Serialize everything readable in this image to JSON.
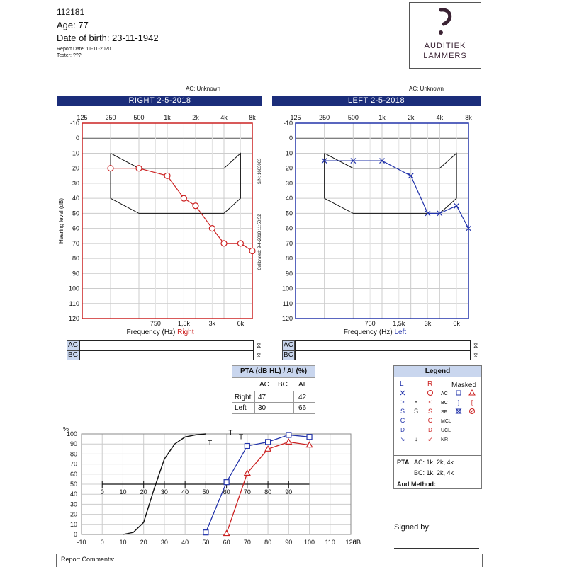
{
  "header": {
    "patient_id": "112181",
    "age": "Age: 77",
    "dob": "Date of birth: 23-11-1942",
    "report_date": "Report Date: 11-11-2020",
    "tester": "Tester: ???"
  },
  "logo": {
    "line1": "AUDITIEK",
    "line2": "LAMMERS"
  },
  "right_panel": {
    "ac_status": "AC: Unknown",
    "title": "RIGHT  2-5-2018",
    "top_freqs": [
      "125",
      "250",
      "500",
      "1k",
      "2k",
      "4k",
      "8k"
    ],
    "bottom_freqs": [
      "750",
      "1,5k",
      "3k",
      "6k"
    ],
    "xlabel": "Frequency (Hz)",
    "side": "Right",
    "ylabel": "Hearing level (dB)",
    "yticks": [
      "-10",
      "0",
      "10",
      "20",
      "30",
      "40",
      "50",
      "60",
      "70",
      "80",
      "90",
      "100",
      "110",
      "120"
    ],
    "sn": "S/N: 1603003",
    "calibrated": "Calibrated: 9-4-2018 11:50:52",
    "color": "#cc2222",
    "ac_points": [
      [
        250,
        20
      ],
      [
        500,
        20
      ],
      [
        1000,
        25
      ],
      [
        1500,
        40
      ],
      [
        2000,
        45
      ],
      [
        3000,
        60
      ],
      [
        4000,
        70
      ],
      [
        6000,
        70
      ],
      [
        8000,
        75
      ]
    ]
  },
  "left_panel": {
    "ac_status": "AC: Unknown",
    "title": "LEFT  2-5-2018",
    "top_freqs": [
      "125",
      "250",
      "500",
      "1k",
      "2k",
      "4k",
      "8k"
    ],
    "bottom_freqs": [
      "750",
      "1,5k",
      "3k",
      "6k"
    ],
    "xlabel": "Frequency (Hz)",
    "side": "Left",
    "yticks": [
      "-10",
      "0",
      "10",
      "20",
      "30",
      "40",
      "50",
      "60",
      "70",
      "80",
      "90",
      "100",
      "110",
      "120"
    ],
    "color": "#2233aa",
    "ac_points": [
      [
        250,
        15
      ],
      [
        500,
        15
      ],
      [
        1000,
        15
      ],
      [
        2000,
        25
      ],
      [
        3000,
        50
      ],
      [
        4000,
        50
      ],
      [
        6000,
        45
      ],
      [
        8000,
        60
      ]
    ]
  },
  "banana": [
    [
      250,
      10
    ],
    [
      250,
      40
    ],
    [
      500,
      50
    ],
    [
      4000,
      50
    ],
    [
      6000,
      40
    ],
    [
      6000,
      10
    ],
    [
      4000,
      20
    ],
    [
      500,
      20
    ],
    [
      250,
      10
    ]
  ],
  "acbc": {
    "ac": "AC",
    "bc": "BC"
  },
  "pta": {
    "title": "PTA (dB HL) / AI (%)",
    "cols": [
      "AC",
      "BC",
      "AI"
    ],
    "rows": [
      {
        "label": "Right",
        "ac": "47",
        "bc": "",
        "ai": "42"
      },
      {
        "label": "Left",
        "ac": "30",
        "bc": "",
        "ai": "66"
      }
    ]
  },
  "legend": {
    "title": "Legend",
    "L": "L",
    "R": "R",
    "masked": "Masked",
    "row_labels": [
      "AC",
      "BC",
      "SF",
      "MCL",
      "UCL",
      "NR"
    ],
    "pta_label": "PTA",
    "pta_ac": "AC: 1k, 2k, 4k",
    "pta_bc": "BC: 1k, 2k, 4k",
    "aud_method": "Aud Method:"
  },
  "signed_by": "Signed by:",
  "report_comments": "Report Comments:",
  "chart_data": {
    "type": "line",
    "ylabel": "%",
    "xunit": "dB",
    "x_ticks": [
      "-10",
      "0",
      "10",
      "20",
      "30",
      "40",
      "50",
      "60",
      "70",
      "80",
      "90",
      "100",
      "110",
      "120"
    ],
    "inner_x_ticks": [
      "0",
      "10",
      "20",
      "30",
      "40",
      "50",
      "60",
      "70",
      "80",
      "90"
    ],
    "y_ticks": [
      "0",
      "10",
      "20",
      "30",
      "40",
      "50",
      "60",
      "70",
      "80",
      "90",
      "100"
    ],
    "xlim": [
      -10,
      120
    ],
    "ylim": [
      0,
      100
    ],
    "series": [
      {
        "color": "#111111",
        "marker": "none",
        "x": [
          10,
          15,
          20,
          25,
          30,
          35,
          40,
          45,
          50
        ],
        "y": [
          0,
          2,
          12,
          45,
          75,
          90,
          97,
          99,
          100
        ]
      },
      {
        "color": "#2233aa",
        "marker": "square",
        "x": [
          50,
          60,
          70,
          80,
          90,
          100
        ],
        "y": [
          2,
          52,
          88,
          92,
          99,
          97
        ]
      },
      {
        "color": "#cc2222",
        "marker": "triangle",
        "x": [
          60,
          70,
          80,
          90,
          100
        ],
        "y": [
          1,
          61,
          85,
          92,
          89
        ]
      }
    ]
  }
}
